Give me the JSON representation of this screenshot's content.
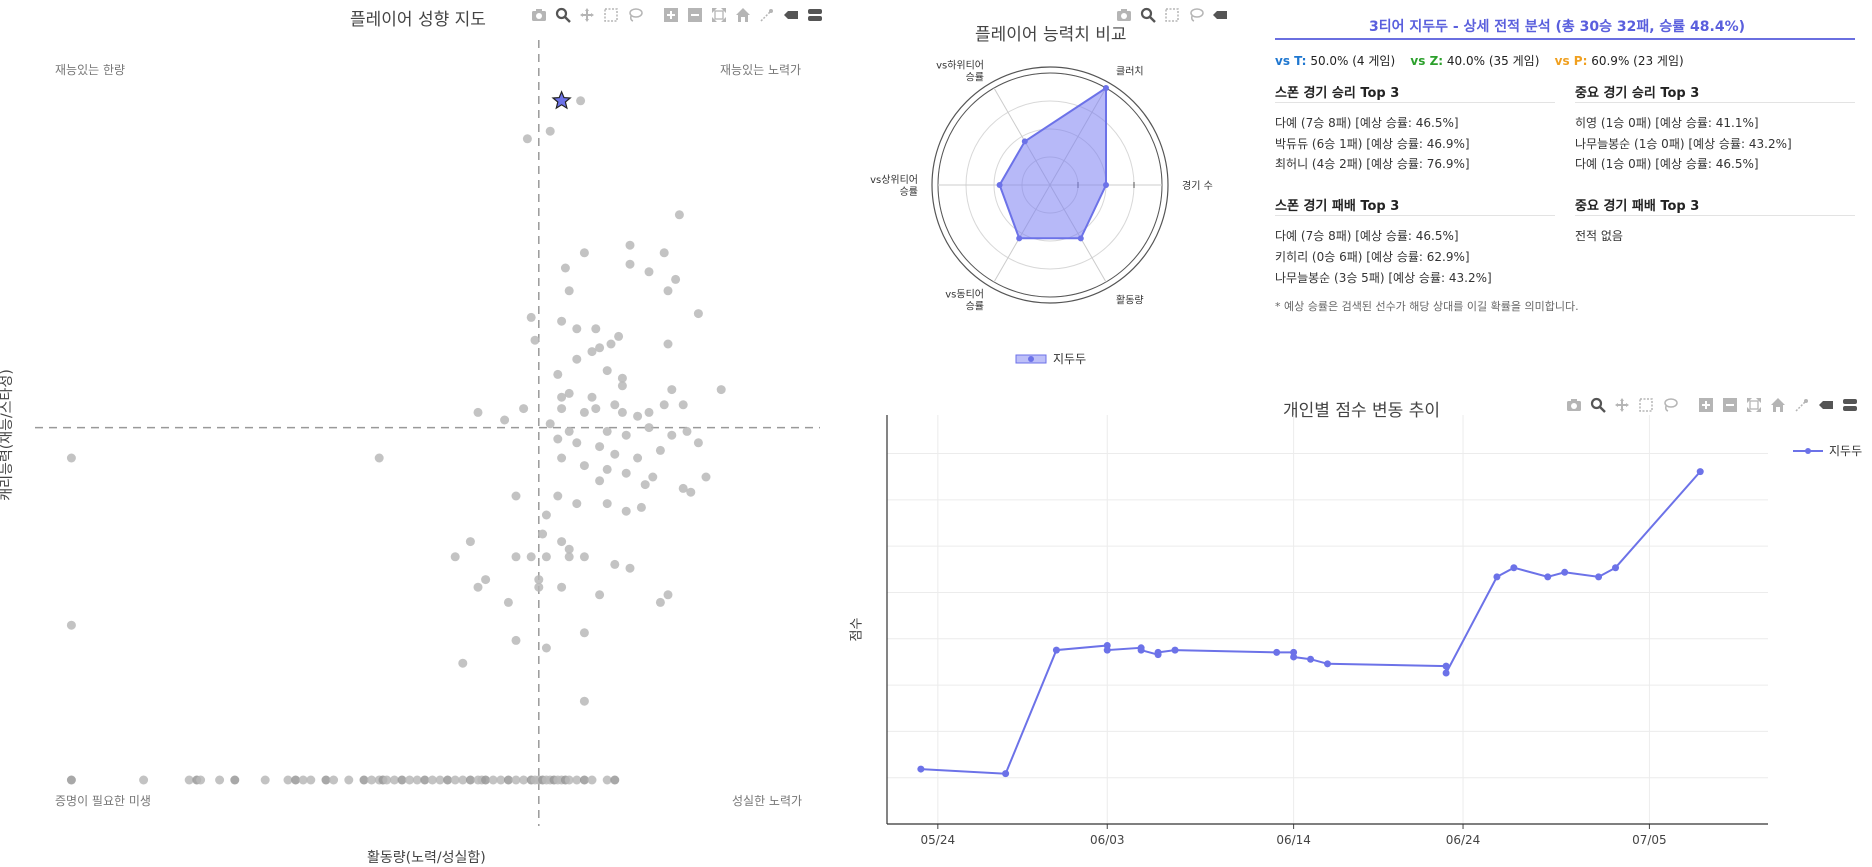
{
  "colors": {
    "accent": "#6c72e8",
    "radar_fill": "#7b80f2",
    "scatter_gray": "#b8b8b8",
    "vs_t": "#1f77d0",
    "vs_z": "#2ca02c",
    "vs_p": "#f0a020"
  },
  "modebar_icons": [
    "camera-icon",
    "zoom-icon",
    "pan-icon",
    "box-select-icon",
    "lasso-icon",
    "zoom-in-icon",
    "zoom-out-icon",
    "autoscale-icon",
    "home-icon",
    "spike-icon",
    "hover-closest-icon",
    "hover-compare-icon"
  ],
  "scatter": {
    "title": "플레이어 성향 지도",
    "xlabel": "활동량(노력/성실함)",
    "ylabel": "캐리능력(재능/스타성)",
    "quadrants": {
      "top_left": "재능있는 한량",
      "top_right": "재능있는 노력가",
      "bottom_left": "증명이 필요한 미생",
      "bottom_right": "성실한 노력가"
    }
  },
  "radar": {
    "title": "플레이어 능력치 비교",
    "legend": "지두두"
  },
  "summary": {
    "title": "3티어 지두두 - 상세 전적 분석 (총 30승 32패, 승률 48.4%)",
    "vs": [
      {
        "label": "vs T:",
        "value": "50.0% (4 게임)"
      },
      {
        "label": "vs Z:",
        "value": "40.0% (35 게임)"
      },
      {
        "label": "vs P:",
        "value": "60.9% (23 게임)"
      }
    ],
    "spawn_win": {
      "heading": "스폰 경기 승리 Top 3",
      "items": [
        "다예 (7승 8패) [예상 승률: 46.5%]",
        "박듀듀 (6승 1패) [예상 승률: 46.9%]",
        "최허니 (4승 2패) [예상 승률: 76.9%]"
      ]
    },
    "important_win": {
      "heading": "중요 경기 승리 Top 3",
      "items": [
        "히영 (1승 0패) [예상 승률: 41.1%]",
        "나무늘봉순 (1승 0패) [예상 승률: 43.2%]",
        "다예 (1승 0패) [예상 승률: 46.5%]"
      ]
    },
    "spawn_loss": {
      "heading": "스폰 경기 패배 Top 3",
      "items": [
        "다예 (7승 8패) [예상 승률: 46.5%]",
        "키히리 (0승 6패) [예상 승률: 62.9%]",
        "나무늘봉순 (3승 5패) [예상 승률: 43.2%]"
      ]
    },
    "important_loss": {
      "heading": "중요 경기 패배 Top 3",
      "items": [
        "전적 없음"
      ]
    },
    "note": "* 예상 승률은 검색된 선수가 해당 상대를 이길 확률을 의미합니다."
  },
  "line": {
    "title": "개인별 점수 변동 추이",
    "ylabel": "점수",
    "legend": "지두두"
  },
  "chart_data": [
    {
      "type": "scatter",
      "title": "플레이어 성향 지도",
      "xlabel": "활동량(노력/성실함)",
      "ylabel": "캐리능력(재능/스타성)",
      "xlim": [
        0,
        100
      ],
      "ylim": [
        0,
        100
      ],
      "reference_lines": {
        "x": 63,
        "y": 49
      },
      "highlight": {
        "x": 66,
        "y": 92
      },
      "points": [
        [
          68.5,
          92
        ],
        [
          61.5,
          87
        ],
        [
          64.5,
          88
        ],
        [
          81.5,
          77
        ],
        [
          69,
          72
        ],
        [
          75,
          73
        ],
        [
          79.5,
          72
        ],
        [
          75,
          70.5
        ],
        [
          66.5,
          70
        ],
        [
          77.5,
          69.5
        ],
        [
          81,
          68.5
        ],
        [
          67,
          67
        ],
        [
          80,
          67
        ],
        [
          84,
          64
        ],
        [
          66,
          63
        ],
        [
          62,
          63.5
        ],
        [
          68,
          62
        ],
        [
          70.5,
          62
        ],
        [
          73.5,
          61
        ],
        [
          62.5,
          60.5
        ],
        [
          71,
          59.5
        ],
        [
          72.5,
          60
        ],
        [
          70,
          59
        ],
        [
          80,
          60
        ],
        [
          68,
          58
        ],
        [
          72,
          56.5
        ],
        [
          74,
          55.5
        ],
        [
          65.5,
          56
        ],
        [
          74,
          54.5
        ],
        [
          67,
          53.5
        ],
        [
          70,
          53
        ],
        [
          73,
          52
        ],
        [
          70.5,
          51.5
        ],
        [
          76,
          50.5
        ],
        [
          66,
          53
        ],
        [
          80.5,
          54
        ],
        [
          87,
          54
        ],
        [
          61,
          51.5
        ],
        [
          66,
          51.5
        ],
        [
          69,
          51
        ],
        [
          74,
          51
        ],
        [
          77.5,
          51
        ],
        [
          79.5,
          52
        ],
        [
          82,
          52
        ],
        [
          55,
          51
        ],
        [
          58.5,
          50
        ],
        [
          64.5,
          49.5
        ],
        [
          67,
          48.5
        ],
        [
          72,
          48.5
        ],
        [
          74.5,
          48
        ],
        [
          77.5,
          49
        ],
        [
          80.5,
          48
        ],
        [
          82.5,
          48.5
        ],
        [
          65.5,
          47.5
        ],
        [
          68,
          47
        ],
        [
          71,
          46.5
        ],
        [
          73,
          45.5
        ],
        [
          76,
          45
        ],
        [
          79,
          46
        ],
        [
          84,
          47
        ],
        [
          66,
          45
        ],
        [
          69,
          44
        ],
        [
          72,
          43.5
        ],
        [
          74.5,
          43
        ],
        [
          71,
          42
        ],
        [
          77,
          41.5
        ],
        [
          78,
          42.5
        ],
        [
          82,
          41
        ],
        [
          85,
          42.5
        ],
        [
          83,
          40.5
        ],
        [
          60,
          40
        ],
        [
          65.5,
          40
        ],
        [
          68,
          39
        ],
        [
          72,
          39
        ],
        [
          74.5,
          38
        ],
        [
          76.5,
          38.5
        ],
        [
          64,
          37.5
        ],
        [
          63.5,
          35
        ],
        [
          66,
          34
        ],
        [
          67,
          33
        ],
        [
          60,
          32
        ],
        [
          62,
          32
        ],
        [
          64,
          32
        ],
        [
          67,
          32
        ],
        [
          69,
          32
        ],
        [
          73,
          31
        ],
        [
          75,
          30.5
        ],
        [
          56,
          29
        ],
        [
          63,
          29
        ],
        [
          66,
          28
        ],
        [
          59,
          26
        ],
        [
          63,
          28
        ],
        [
          71,
          27
        ],
        [
          80,
          27
        ],
        [
          79,
          26
        ],
        [
          60,
          21
        ],
        [
          64,
          20
        ],
        [
          69,
          22
        ],
        [
          53,
          18
        ],
        [
          69,
          13
        ],
        [
          1.5,
          45
        ],
        [
          1.5,
          23
        ],
        [
          42,
          45
        ],
        [
          52,
          32
        ],
        [
          54,
          34
        ],
        [
          55,
          28
        ]
      ],
      "bottom_row_x": [
        1.5,
        11,
        17,
        18,
        18.5,
        21,
        23,
        27,
        30,
        31,
        32,
        33,
        35,
        36,
        38,
        40,
        41,
        42,
        42.5,
        43,
        44,
        45,
        46,
        47,
        48,
        49,
        50,
        51,
        52,
        53,
        54,
        55,
        55.5,
        56,
        57,
        58,
        59,
        60,
        61,
        62,
        62.5,
        63,
        63.5,
        64,
        64.5,
        65,
        65.5,
        66,
        66.5,
        67,
        68,
        69,
        70,
        72,
        73
      ]
    },
    {
      "type": "radar",
      "title": "플레이어 능력치 비교",
      "axes": [
        "경기 수",
        "클러치",
        "vs하위티어\n승률",
        "vs상위티어\n승률",
        "vs동티어\n승률",
        "활동량"
      ],
      "series": [
        {
          "name": "지두두",
          "values": [
            0.5,
            1.0,
            0.45,
            0.45,
            0.55,
            0.55
          ]
        }
      ],
      "rlim": [
        0,
        1
      ]
    },
    {
      "type": "line",
      "title": "개인별 점수 변동 추이",
      "ylabel": "점수",
      "x_ticks": [
        "05/24",
        "06/03",
        "06/14",
        "06/24",
        "07/05"
      ],
      "series": [
        {
          "name": "지두두",
          "points": [
            [
              "2025-05-23",
              12
            ],
            [
              "2025-05-28",
              11
            ],
            [
              "2025-05-31",
              38
            ],
            [
              "2025-06-03",
              39
            ],
            [
              "2025-06-03",
              38
            ],
            [
              "2025-06-05",
              38.5
            ],
            [
              "2025-06-05",
              38
            ],
            [
              "2025-06-06",
              37
            ],
            [
              "2025-06-06",
              37.5
            ],
            [
              "2025-06-07",
              38
            ],
            [
              "2025-06-13",
              37.5
            ],
            [
              "2025-06-14",
              37.5
            ],
            [
              "2025-06-14",
              36.5
            ],
            [
              "2025-06-15",
              36
            ],
            [
              "2025-06-16",
              35
            ],
            [
              "2025-06-23",
              34.5
            ],
            [
              "2025-06-23",
              33
            ],
            [
              "2025-06-26",
              54
            ],
            [
              "2025-06-27",
              56
            ],
            [
              "2025-06-29",
              54
            ],
            [
              "2025-06-30",
              55
            ],
            [
              "2025-07-02",
              54
            ],
            [
              "2025-07-03",
              56
            ],
            [
              "2025-07-08",
              77
            ]
          ]
        }
      ]
    }
  ]
}
